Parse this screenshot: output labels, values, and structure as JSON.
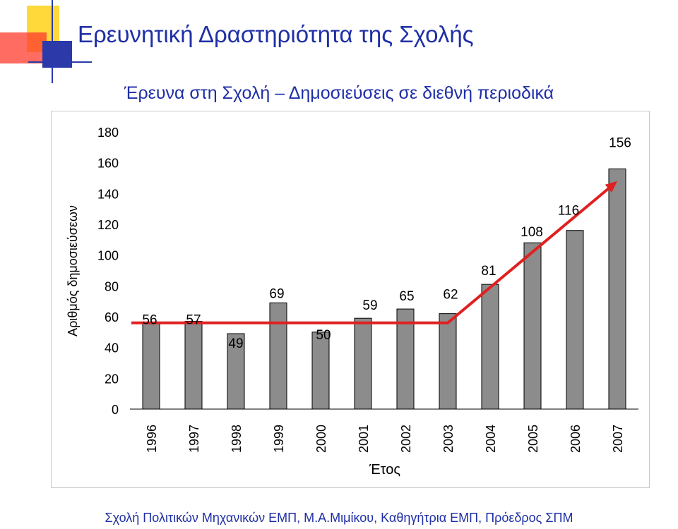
{
  "slide": {
    "title": "Ερευνητική Δραστηριότητα της Σχολής",
    "footer": "Σχολή Πολιτικών Μηχανικών ΕΜΠ, Μ.Α.Μιμίκου, Καθηγήτρια ΕΜΠ, Πρόεδρος ΣΠΜ"
  },
  "colors": {
    "title": "#1f2fa6",
    "bar": "#8c8c8c",
    "trend": "#e02020",
    "deco_yellow": "#ffd83a",
    "deco_red": "#ff3b2e",
    "deco_blue": "#2b3aa8"
  },
  "chart_data": {
    "type": "bar",
    "title": "Έρευνα στη Σχολή – Δημοσιεύσεις σε διεθνή περιοδικά",
    "xlabel": "Έτος",
    "ylabel": "Αριθμός δημοσιεύσεων",
    "ylim": [
      0,
      180
    ],
    "yticks": [
      0,
      20,
      40,
      60,
      80,
      100,
      120,
      140,
      160,
      180
    ],
    "grid": false,
    "legend": "none",
    "categories": [
      "1996",
      "1997",
      "1998",
      "1999",
      "2000",
      "2001",
      "2002",
      "2003",
      "2004",
      "2005",
      "2006",
      "2007"
    ],
    "values": [
      56,
      57,
      49,
      69,
      50,
      59,
      65,
      62,
      81,
      108,
      116,
      156
    ],
    "data_labels": [
      "56",
      "57",
      "49",
      "69",
      "50",
      "59",
      "65",
      "62",
      "81",
      "108",
      "116",
      "156"
    ],
    "trend_line": {
      "type": "arrow",
      "points": [
        [
          "1996",
          56
        ],
        [
          "2003",
          56
        ],
        [
          "2007",
          148
        ]
      ]
    }
  }
}
